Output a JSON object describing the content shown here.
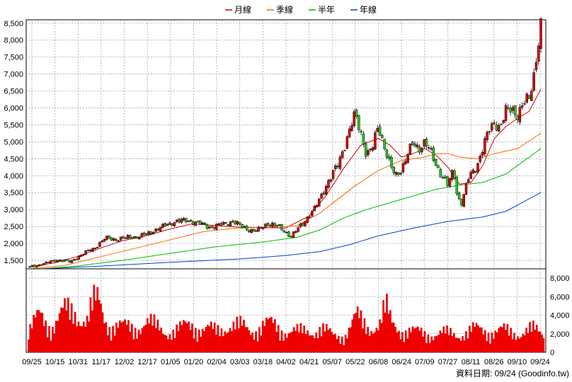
{
  "chart_data": [
    {
      "type": "candlestick",
      "legend": [
        {
          "name": "月線",
          "color": "#cc0000"
        },
        {
          "name": "季線",
          "color": "#ff6600"
        },
        {
          "name": "半年",
          "color": "#00bb00"
        },
        {
          "name": "年線",
          "color": "#0044cc"
        }
      ],
      "y_ticks": [
        "8,500",
        "8,000",
        "7,500",
        "7,000",
        "6,500",
        "6,000",
        "5,500",
        "5,000",
        "4,500",
        "4,000",
        "3,500",
        "3,000",
        "2,500",
        "2,000",
        "1,500"
      ],
      "ylim": [
        1250,
        8600
      ],
      "x_ticks": [
        "09/25",
        "10/15",
        "10/31",
        "11/17",
        "12/02",
        "12/17",
        "01/05",
        "01/20",
        "02/04",
        "03/03",
        "03/18",
        "04/02",
        "04/21",
        "05/07",
        "05/22",
        "06/08",
        "06/24",
        "07/09",
        "07/27",
        "08/11",
        "08/26",
        "09/10",
        "09/24"
      ],
      "price_path": [
        [
          0,
          1300
        ],
        [
          15,
          1430
        ],
        [
          25,
          1520
        ],
        [
          35,
          1450
        ],
        [
          45,
          1680
        ],
        [
          55,
          1850
        ],
        [
          65,
          2150
        ],
        [
          75,
          2120
        ],
        [
          85,
          2180
        ],
        [
          95,
          2200
        ],
        [
          105,
          2350
        ],
        [
          115,
          2500
        ],
        [
          125,
          2650
        ],
        [
          135,
          2680
        ],
        [
          145,
          2600
        ],
        [
          155,
          2480
        ],
        [
          165,
          2550
        ],
        [
          175,
          2650
        ],
        [
          185,
          2450
        ],
        [
          195,
          2350
        ],
        [
          205,
          2600
        ],
        [
          215,
          2480
        ],
        [
          225,
          2200
        ],
        [
          235,
          2600
        ],
        [
          245,
          3000
        ],
        [
          255,
          3700
        ],
        [
          265,
          4300
        ],
        [
          275,
          5300
        ],
        [
          280,
          5800
        ],
        [
          285,
          5300
        ],
        [
          290,
          4600
        ],
        [
          295,
          4800
        ],
        [
          300,
          5500
        ],
        [
          305,
          4900
        ],
        [
          310,
          4300
        ],
        [
          315,
          4000
        ],
        [
          320,
          4200
        ],
        [
          325,
          4600
        ],
        [
          330,
          4950
        ],
        [
          335,
          4800
        ],
        [
          340,
          5000
        ],
        [
          345,
          4700
        ],
        [
          350,
          4300
        ],
        [
          355,
          4000
        ],
        [
          360,
          3700
        ],
        [
          365,
          4200
        ],
        [
          368,
          3400
        ],
        [
          372,
          3200
        ],
        [
          378,
          3950
        ],
        [
          385,
          4300
        ],
        [
          390,
          4800
        ],
        [
          395,
          5300
        ],
        [
          400,
          5600
        ],
        [
          405,
          5400
        ],
        [
          410,
          5900
        ],
        [
          415,
          6000
        ],
        [
          420,
          5800
        ],
        [
          425,
          6100
        ],
        [
          430,
          6300
        ],
        [
          434,
          7000
        ],
        [
          436,
          7500
        ],
        [
          440,
          8400
        ]
      ],
      "ma_month": [
        [
          0,
          1300
        ],
        [
          20,
          1420
        ],
        [
          40,
          1600
        ],
        [
          60,
          1850
        ],
        [
          80,
          2080
        ],
        [
          100,
          2220
        ],
        [
          120,
          2420
        ],
        [
          140,
          2580
        ],
        [
          160,
          2530
        ],
        [
          180,
          2480
        ],
        [
          200,
          2470
        ],
        [
          220,
          2450
        ],
        [
          240,
          2800
        ],
        [
          255,
          3400
        ],
        [
          270,
          4200
        ],
        [
          285,
          4900
        ],
        [
          300,
          5100
        ],
        [
          310,
          4900
        ],
        [
          320,
          4550
        ],
        [
          330,
          4650
        ],
        [
          340,
          4800
        ],
        [
          350,
          4600
        ],
        [
          360,
          4250
        ],
        [
          370,
          3750
        ],
        [
          380,
          3800
        ],
        [
          390,
          4300
        ],
        [
          400,
          5100
        ],
        [
          410,
          5450
        ],
        [
          420,
          5700
        ],
        [
          430,
          5900
        ],
        [
          440,
          6550
        ]
      ],
      "ma_quarter": [
        [
          0,
          1250
        ],
        [
          30,
          1350
        ],
        [
          60,
          1600
        ],
        [
          90,
          1850
        ],
        [
          120,
          2100
        ],
        [
          150,
          2350
        ],
        [
          180,
          2460
        ],
        [
          210,
          2480
        ],
        [
          230,
          2520
        ],
        [
          250,
          2900
        ],
        [
          265,
          3300
        ],
        [
          280,
          3700
        ],
        [
          300,
          4150
        ],
        [
          320,
          4450
        ],
        [
          340,
          4550
        ],
        [
          350,
          4650
        ],
        [
          360,
          4650
        ],
        [
          370,
          4550
        ],
        [
          385,
          4500
        ],
        [
          400,
          4650
        ],
        [
          420,
          4800
        ],
        [
          440,
          5250
        ]
      ],
      "ma_half": [
        [
          0,
          1220
        ],
        [
          40,
          1330
        ],
        [
          80,
          1500
        ],
        [
          120,
          1700
        ],
        [
          160,
          1900
        ],
        [
          200,
          2040
        ],
        [
          230,
          2180
        ],
        [
          250,
          2400
        ],
        [
          270,
          2750
        ],
        [
          290,
          3000
        ],
        [
          310,
          3200
        ],
        [
          330,
          3400
        ],
        [
          350,
          3600
        ],
        [
          370,
          3720
        ],
        [
          390,
          3800
        ],
        [
          410,
          4050
        ],
        [
          440,
          4800
        ]
      ],
      "ma_year": [
        [
          0,
          1230
        ],
        [
          60,
          1330
        ],
        [
          120,
          1440
        ],
        [
          180,
          1540
        ],
        [
          220,
          1640
        ],
        [
          250,
          1760
        ],
        [
          275,
          1960
        ],
        [
          300,
          2220
        ],
        [
          330,
          2450
        ],
        [
          360,
          2650
        ],
        [
          390,
          2780
        ],
        [
          410,
          2950
        ],
        [
          440,
          3500
        ]
      ],
      "volume_ticks": [
        "8,000",
        "6,000",
        "4,000",
        "2,000",
        "0"
      ],
      "volume_ylim": [
        0,
        9000
      ],
      "volume_profile": [
        [
          0,
          2500
        ],
        [
          10,
          4500
        ],
        [
          20,
          3500
        ],
        [
          30,
          4800
        ],
        [
          40,
          5200
        ],
        [
          50,
          4000
        ],
        [
          55,
          5800
        ],
        [
          60,
          6200
        ],
        [
          65,
          4600
        ],
        [
          70,
          3500
        ],
        [
          80,
          3000
        ],
        [
          90,
          3300
        ],
        [
          100,
          3600
        ],
        [
          110,
          3200
        ],
        [
          120,
          2600
        ],
        [
          130,
          2800
        ],
        [
          140,
          3700
        ],
        [
          150,
          2800
        ],
        [
          160,
          2700
        ],
        [
          170,
          3500
        ],
        [
          180,
          3200
        ],
        [
          190,
          2800
        ],
        [
          200,
          3400
        ],
        [
          210,
          3300
        ],
        [
          220,
          2800
        ],
        [
          230,
          2500
        ],
        [
          240,
          2700
        ],
        [
          250,
          3000
        ],
        [
          260,
          2000
        ],
        [
          270,
          2300
        ],
        [
          280,
          4200
        ],
        [
          290,
          3300
        ],
        [
          300,
          3500
        ],
        [
          305,
          5500
        ],
        [
          310,
          3600
        ],
        [
          320,
          2900
        ],
        [
          330,
          2400
        ],
        [
          340,
          2500
        ],
        [
          350,
          2200
        ],
        [
          360,
          2400
        ],
        [
          370,
          2300
        ],
        [
          380,
          2700
        ],
        [
          390,
          2900
        ],
        [
          400,
          2600
        ],
        [
          410,
          2600
        ],
        [
          420,
          2500
        ],
        [
          430,
          2800
        ],
        [
          440,
          2300
        ]
      ],
      "x_range": [
        0,
        440
      ]
    }
  ],
  "footer": {
    "text": "資料日期: 09/24  (Goodinfo.tw)"
  }
}
